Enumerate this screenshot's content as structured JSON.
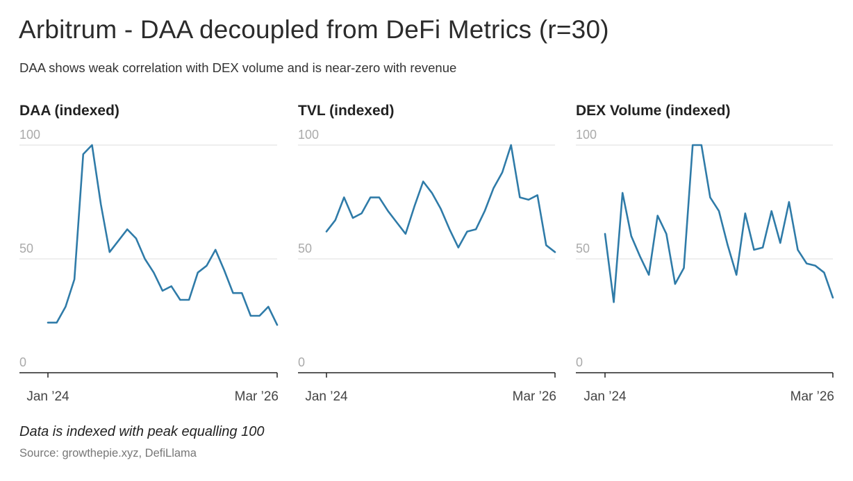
{
  "title": "Arbitrum - DAA decoupled from DeFi Metrics (r=30)",
  "subtitle": "DAA shows weak correlation with DEX volume and is near-zero with revenue",
  "note": "Data is indexed with peak equalling 100",
  "source": "Source: growthepie.xyz, DefiLlama",
  "colors": {
    "line": "#2f7ba8",
    "grid": "#dddddd",
    "axis": "#222222"
  },
  "chart_data": [
    {
      "type": "line",
      "title": "DAA (indexed)",
      "ylim": [
        0,
        100
      ],
      "yticks": [
        "100",
        "50",
        "0"
      ],
      "x_tick_labels": [
        "Jan ’24",
        "Mar ’26"
      ],
      "grid": true,
      "values": [
        22,
        22,
        29,
        41,
        96,
        100,
        74,
        53,
        58,
        63,
        59,
        50,
        44,
        36,
        38,
        32,
        32,
        44,
        47,
        54,
        45,
        35,
        35,
        25,
        25,
        29,
        21
      ]
    },
    {
      "type": "line",
      "title": "TVL (indexed)",
      "ylim": [
        0,
        100
      ],
      "yticks": [
        "100",
        "50",
        "0"
      ],
      "x_tick_labels": [
        "Jan ’24",
        "Mar ’26"
      ],
      "grid": true,
      "values": [
        62,
        67,
        77,
        68,
        70,
        77,
        77,
        71,
        66,
        61,
        73,
        84,
        79,
        72,
        63,
        55,
        62,
        63,
        71,
        81,
        88,
        100,
        77,
        76,
        78,
        56,
        53
      ]
    },
    {
      "type": "line",
      "title": "DEX Volume (indexed)",
      "ylim": [
        0,
        100
      ],
      "yticks": [
        "100",
        "50",
        "0"
      ],
      "x_tick_labels": [
        "Jan ’24",
        "Mar ’26"
      ],
      "grid": true,
      "values": [
        61,
        31,
        79,
        60,
        51,
        43,
        69,
        61,
        39,
        46,
        100,
        100,
        77,
        71,
        56,
        43,
        70,
        54,
        55,
        71,
        57,
        75,
        54,
        48,
        47,
        44,
        33
      ]
    }
  ]
}
